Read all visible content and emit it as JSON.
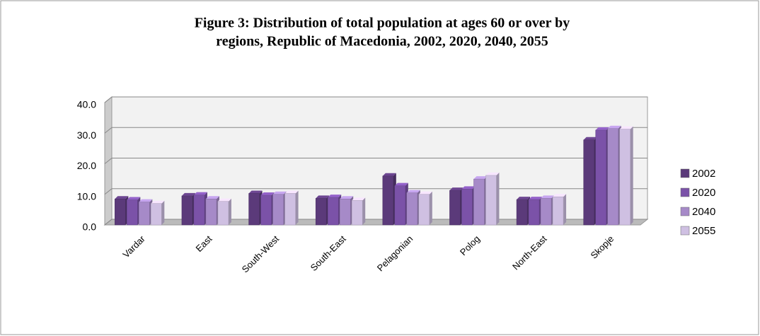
{
  "chart_data": {
    "type": "bar",
    "title": "Figure 3: Distribution of total population at ages 60 or over by regions, Republic of Macedonia, 2002, 2020, 2040, 2055",
    "title_lines": [
      "Figure 3: Distribution of total population at ages 60 or over  by",
      "regions, Republic of Macedonia, 2002, 2020, 2040, 2055"
    ],
    "categories": [
      "Vardar",
      "East",
      "South-West",
      "South-East",
      "Pelagonian",
      "Polog",
      "North-East",
      "Skopje"
    ],
    "series": [
      {
        "name": "2002",
        "color": "#5b3a7a",
        "values": [
          8.5,
          9.5,
          10.3,
          8.7,
          16.0,
          11.3,
          8.3,
          27.8
        ]
      },
      {
        "name": "2020",
        "color": "#7b52a8",
        "values": [
          8.2,
          9.8,
          9.7,
          9.0,
          12.8,
          11.7,
          8.3,
          31.0
        ]
      },
      {
        "name": "2040",
        "color": "#a68ac8",
        "values": [
          7.5,
          8.5,
          10.0,
          8.5,
          10.5,
          15.0,
          8.7,
          31.5
        ]
      },
      {
        "name": "2055",
        "color": "#cfc0e2",
        "values": [
          7.0,
          7.7,
          10.3,
          8.0,
          10.0,
          16.2,
          9.2,
          31.3
        ]
      }
    ],
    "ylim": [
      0,
      40
    ],
    "yticks": [
      {
        "value": 0,
        "label": "0.0"
      },
      {
        "value": 10,
        "label": "10.0"
      },
      {
        "value": 20,
        "label": "20.0"
      },
      {
        "value": 30,
        "label": "30.0"
      },
      {
        "value": 40,
        "label": "40.0"
      }
    ],
    "grid": true,
    "legend": "right"
  }
}
